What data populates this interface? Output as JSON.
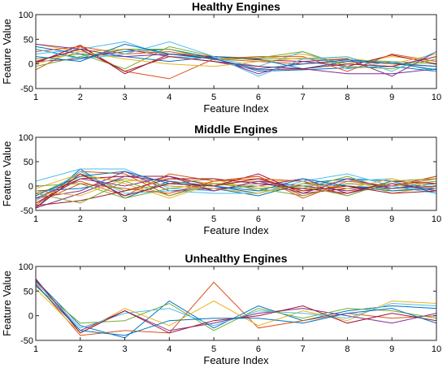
{
  "chart_data": [
    {
      "type": "line",
      "title": "Healthy Engines",
      "xlabel": "Feature Index",
      "ylabel": "Feature Value",
      "x": [
        1,
        2,
        3,
        4,
        5,
        6,
        7,
        8,
        9,
        10
      ],
      "xlim": [
        1,
        10
      ],
      "ylim": [
        -50,
        100
      ],
      "xticks": [
        "1",
        "2",
        "3",
        "4",
        "5",
        "6",
        "7",
        "8",
        "9",
        "10"
      ],
      "yticks": [
        "-50",
        "0",
        "50",
        "100"
      ],
      "grid": false,
      "series": [
        {
          "color": "#0072BD",
          "values": [
            30,
            12,
            25,
            30,
            12,
            -15,
            -12,
            -8,
            -5,
            -15
          ]
        },
        {
          "color": "#D95319",
          "values": [
            -12,
            35,
            -15,
            -30,
            10,
            5,
            0,
            5,
            0,
            -5
          ]
        },
        {
          "color": "#EDB120",
          "values": [
            40,
            25,
            30,
            20,
            15,
            10,
            20,
            0,
            15,
            5
          ]
        },
        {
          "color": "#7E2F8E",
          "values": [
            5,
            10,
            30,
            15,
            5,
            -12,
            -10,
            -20,
            -20,
            -10
          ]
        },
        {
          "color": "#77AC30",
          "values": [
            10,
            20,
            -10,
            35,
            15,
            12,
            10,
            8,
            5,
            0
          ]
        },
        {
          "color": "#4DBEEE",
          "values": [
            20,
            30,
            45,
            15,
            12,
            -5,
            25,
            -10,
            5,
            -15
          ]
        },
        {
          "color": "#A2142F",
          "values": [
            2,
            38,
            -20,
            20,
            15,
            8,
            5,
            -5,
            18,
            0
          ]
        },
        {
          "color": "#0072BD",
          "values": [
            35,
            20,
            15,
            5,
            15,
            10,
            -10,
            5,
            2,
            -12
          ]
        },
        {
          "color": "#D95319",
          "values": [
            25,
            35,
            20,
            25,
            10,
            15,
            15,
            -15,
            20,
            5
          ]
        },
        {
          "color": "#EDB120",
          "values": [
            0,
            25,
            10,
            0,
            -5,
            5,
            12,
            12,
            0,
            20
          ]
        },
        {
          "color": "#7E2F8E",
          "values": [
            40,
            30,
            15,
            20,
            12,
            -20,
            5,
            10,
            -25,
            25
          ]
        },
        {
          "color": "#77AC30",
          "values": [
            -5,
            15,
            30,
            30,
            8,
            12,
            25,
            -5,
            -10,
            10
          ]
        },
        {
          "color": "#4DBEEE",
          "values": [
            30,
            10,
            20,
            45,
            15,
            -25,
            10,
            15,
            -15,
            25
          ]
        },
        {
          "color": "#A2142F",
          "values": [
            5,
            30,
            -15,
            15,
            5,
            -5,
            -10,
            0,
            -5,
            15
          ]
        },
        {
          "color": "#0072BD",
          "values": [
            15,
            5,
            40,
            20,
            10,
            -10,
            0,
            8,
            2,
            -5
          ]
        }
      ]
    },
    {
      "type": "line",
      "title": "Middle Engines",
      "xlabel": "Feature Index",
      "ylabel": "Feature Value",
      "x": [
        1,
        2,
        3,
        4,
        5,
        6,
        7,
        8,
        9,
        10
      ],
      "xlim": [
        1,
        10
      ],
      "ylim": [
        -50,
        100
      ],
      "xticks": [
        "1",
        "2",
        "3",
        "4",
        "5",
        "6",
        "7",
        "8",
        "9",
        "10"
      ],
      "yticks": [
        "-50",
        "0",
        "50",
        "100"
      ],
      "grid": false,
      "series": [
        {
          "color": "#0072BD",
          "values": [
            -45,
            35,
            -25,
            10,
            0,
            -15,
            5,
            15,
            10,
            -15
          ]
        },
        {
          "color": "#D95319",
          "values": [
            -40,
            30,
            25,
            -20,
            10,
            20,
            -20,
            5,
            0,
            15
          ]
        },
        {
          "color": "#EDB120",
          "values": [
            -30,
            20,
            10,
            15,
            5,
            10,
            10,
            -10,
            -5,
            10
          ]
        },
        {
          "color": "#7E2F8E",
          "values": [
            -25,
            -10,
            30,
            -10,
            -5,
            0,
            15,
            -15,
            5,
            -5
          ]
        },
        {
          "color": "#77AC30",
          "values": [
            -20,
            25,
            -10,
            5,
            15,
            -10,
            -5,
            20,
            -10,
            0
          ]
        },
        {
          "color": "#4DBEEE",
          "values": [
            10,
            35,
            35,
            -5,
            -10,
            5,
            0,
            10,
            15,
            -10
          ]
        },
        {
          "color": "#A2142F",
          "values": [
            -35,
            15,
            20,
            20,
            0,
            25,
            -15,
            -5,
            0,
            20
          ]
        },
        {
          "color": "#0072BD",
          "values": [
            -10,
            -5,
            15,
            0,
            -5,
            -20,
            5,
            0,
            -5,
            5
          ]
        },
        {
          "color": "#D95319",
          "values": [
            -15,
            10,
            -20,
            25,
            10,
            15,
            10,
            -20,
            10,
            15
          ]
        },
        {
          "color": "#EDB120",
          "values": [
            -5,
            25,
            5,
            -25,
            5,
            0,
            -10,
            15,
            -15,
            0
          ]
        },
        {
          "color": "#7E2F8E",
          "values": [
            -45,
            -15,
            20,
            10,
            -10,
            10,
            0,
            -10,
            5,
            -10
          ]
        },
        {
          "color": "#77AC30",
          "values": [
            0,
            5,
            -25,
            -5,
            5,
            -5,
            -20,
            5,
            0,
            10
          ]
        },
        {
          "color": "#4DBEEE",
          "values": [
            -30,
            30,
            -15,
            -10,
            -15,
            -15,
            10,
            25,
            0,
            -15
          ]
        },
        {
          "color": "#A2142F",
          "values": [
            -40,
            -30,
            -10,
            15,
            15,
            5,
            -5,
            -15,
            10,
            5
          ]
        },
        {
          "color": "#0072BD",
          "values": [
            -20,
            20,
            30,
            5,
            0,
            -10,
            15,
            0,
            -10,
            -5
          ]
        },
        {
          "color": "#D95319",
          "values": [
            -35,
            5,
            -5,
            -15,
            10,
            20,
            -25,
            10,
            0,
            20
          ]
        },
        {
          "color": "#EDB120",
          "values": [
            -10,
            -20,
            15,
            0,
            -5,
            -15,
            5,
            -5,
            15,
            -5
          ]
        },
        {
          "color": "#7E2F8E",
          "values": [
            -25,
            15,
            0,
            20,
            -10,
            10,
            -15,
            15,
            -5,
            0
          ]
        },
        {
          "color": "#77AC30",
          "values": [
            -15,
            -35,
            10,
            -20,
            5,
            -5,
            0,
            -20,
            10,
            15
          ]
        },
        {
          "color": "#A2142F",
          "values": [
            -45,
            25,
            -20,
            5,
            0,
            15,
            -10,
            0,
            -15,
            -10
          ]
        }
      ]
    },
    {
      "type": "line",
      "title": "Unhealthy Engines",
      "xlabel": "Feature Index",
      "ylabel": "Feature Value",
      "x": [
        1,
        2,
        3,
        4,
        5,
        6,
        7,
        8,
        9,
        10
      ],
      "xlim": [
        1,
        10
      ],
      "ylim": [
        -50,
        100
      ],
      "xticks": [
        "1",
        "2",
        "3",
        "4",
        "5",
        "6",
        "7",
        "8",
        "9",
        "10"
      ],
      "yticks": [
        "-50",
        "0",
        "50",
        "100"
      ],
      "grid": false,
      "series": [
        {
          "color": "#0072BD",
          "values": [
            72,
            -20,
            -45,
            30,
            -25,
            20,
            -10,
            10,
            20,
            15
          ]
        },
        {
          "color": "#D95319",
          "values": [
            65,
            -40,
            -30,
            -35,
            68,
            -25,
            -10,
            5,
            -5,
            0
          ]
        },
        {
          "color": "#EDB120",
          "values": [
            55,
            -35,
            15,
            -20,
            30,
            -20,
            10,
            -10,
            30,
            25
          ]
        },
        {
          "color": "#7E2F8E",
          "values": [
            70,
            -30,
            10,
            -30,
            -15,
            5,
            15,
            0,
            -15,
            5
          ]
        },
        {
          "color": "#77AC30",
          "values": [
            60,
            -15,
            -10,
            25,
            -30,
            15,
            -5,
            15,
            10,
            -5
          ]
        },
        {
          "color": "#4DBEEE",
          "values": [
            68,
            -25,
            5,
            15,
            -20,
            10,
            5,
            -5,
            25,
            20
          ]
        },
        {
          "color": "#A2142F",
          "values": [
            75,
            -35,
            10,
            -35,
            -10,
            0,
            20,
            -15,
            5,
            -10
          ]
        },
        {
          "color": "#0072BD",
          "values": [
            62,
            -30,
            -40,
            -10,
            -5,
            -5,
            -15,
            5,
            15,
            -15
          ]
        }
      ]
    }
  ]
}
